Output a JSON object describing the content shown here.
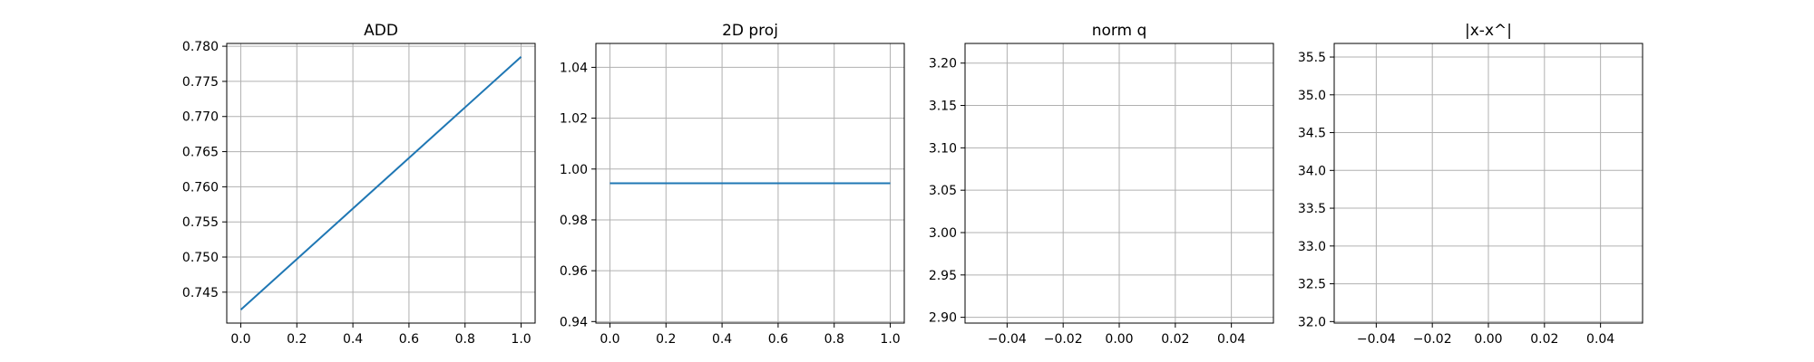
{
  "chart_data": [
    {
      "type": "line",
      "title": "ADD",
      "xlim": [
        -0.05,
        1.05
      ],
      "ylim": [
        0.7406,
        0.7804
      ],
      "xticks": [
        0.0,
        0.2,
        0.4,
        0.6,
        0.8,
        1.0
      ],
      "xtick_labels": [
        "0.0",
        "0.2",
        "0.4",
        "0.6",
        "0.8",
        "1.0"
      ],
      "yticks": [
        0.745,
        0.75,
        0.755,
        0.76,
        0.765,
        0.77,
        0.775,
        0.78
      ],
      "ytick_labels": [
        "0.745",
        "0.750",
        "0.755",
        "0.760",
        "0.765",
        "0.770",
        "0.775",
        "0.780"
      ],
      "grid": true,
      "series": [
        {
          "x": [
            0.0,
            1.0
          ],
          "y": [
            0.7425,
            0.7785
          ],
          "color": "#1f77b4"
        }
      ]
    },
    {
      "type": "line",
      "title": "2D proj",
      "xlim": [
        -0.05,
        1.05
      ],
      "ylim": [
        0.9394,
        1.0494
      ],
      "xticks": [
        0.0,
        0.2,
        0.4,
        0.6,
        0.8,
        1.0
      ],
      "xtick_labels": [
        "0.0",
        "0.2",
        "0.4",
        "0.6",
        "0.8",
        "1.0"
      ],
      "yticks": [
        0.94,
        0.96,
        0.98,
        1.0,
        1.02,
        1.04
      ],
      "ytick_labels": [
        "0.94",
        "0.96",
        "0.98",
        "1.00",
        "1.02",
        "1.04"
      ],
      "grid": true,
      "series": [
        {
          "x": [
            0.0,
            1.0
          ],
          "y": [
            0.9944,
            0.9944
          ],
          "color": "#1f77b4"
        }
      ]
    },
    {
      "type": "line",
      "title": "norm q",
      "xlim": [
        -0.055,
        0.055
      ],
      "ylim": [
        2.8932,
        3.2232
      ],
      "xticks": [
        -0.04,
        -0.02,
        0.0,
        0.02,
        0.04
      ],
      "xtick_labels": [
        "−0.04",
        "−0.02",
        "0.00",
        "0.02",
        "0.04"
      ],
      "yticks": [
        2.9,
        2.95,
        3.0,
        3.05,
        3.1,
        3.15,
        3.2
      ],
      "ytick_labels": [
        "2.90",
        "2.95",
        "3.00",
        "3.05",
        "3.10",
        "3.15",
        "3.20"
      ],
      "grid": true,
      "series": []
    },
    {
      "type": "line",
      "title": "|x-x^|",
      "xlim": [
        -0.055,
        0.055
      ],
      "ylim": [
        31.98,
        35.68
      ],
      "xticks": [
        -0.04,
        -0.02,
        0.0,
        0.02,
        0.04
      ],
      "xtick_labels": [
        "−0.04",
        "−0.02",
        "0.00",
        "0.02",
        "0.04"
      ],
      "yticks": [
        32.0,
        32.5,
        33.0,
        33.5,
        34.0,
        34.5,
        35.0,
        35.5
      ],
      "ytick_labels": [
        "32.0",
        "32.5",
        "33.0",
        "33.5",
        "34.0",
        "34.5",
        "35.0",
        "35.5"
      ],
      "grid": true,
      "series": []
    }
  ]
}
